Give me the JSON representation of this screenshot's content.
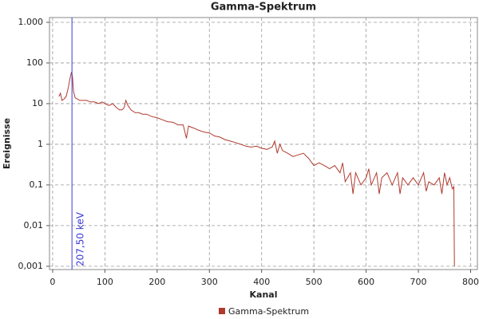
{
  "chart_data": {
    "type": "line",
    "title": "Gamma-Spektrum",
    "x_label": "Kanal",
    "y_label": "Ereignisse",
    "x": [
      12,
      15,
      18,
      22,
      26,
      30,
      33,
      36,
      38,
      40,
      43,
      47,
      52,
      58,
      65,
      72,
      80,
      88,
      95,
      100,
      108,
      115,
      122,
      128,
      133,
      137,
      140,
      144,
      150,
      158,
      165,
      172,
      180,
      190,
      200,
      210,
      220,
      230,
      240,
      250,
      256,
      260,
      270,
      280,
      290,
      300,
      310,
      320,
      330,
      340,
      350,
      360,
      370,
      380,
      390,
      400,
      410,
      420,
      425,
      430,
      435,
      440,
      450,
      460,
      470,
      480,
      490,
      500,
      510,
      520,
      530,
      540,
      550,
      555,
      560,
      570,
      575,
      580,
      590,
      600,
      605,
      610,
      620,
      625,
      630,
      640,
      650,
      660,
      665,
      670,
      680,
      690,
      700,
      710,
      715,
      720,
      730,
      740,
      745,
      750,
      755,
      760,
      765,
      768,
      769
    ],
    "series": [
      {
        "name": "Gamma-Spektrum",
        "color": "#b03a2e",
        "values": [
          15,
          18,
          12,
          13,
          15,
          25,
          40,
          60,
          45,
          20,
          14,
          13,
          12,
          12,
          12,
          11,
          11,
          10,
          11,
          10,
          9,
          10,
          8,
          7,
          7,
          8,
          12,
          9,
          7,
          6,
          6,
          5.5,
          5.5,
          4.8,
          4.5,
          4,
          3.6,
          3.5,
          3,
          3,
          1.4,
          2.8,
          2.5,
          2.2,
          2,
          1.9,
          1.6,
          1.5,
          1.3,
          1.2,
          1.1,
          1,
          0.9,
          0.85,
          0.9,
          0.8,
          0.75,
          0.85,
          1.2,
          0.6,
          1.0,
          0.7,
          0.6,
          0.5,
          0.55,
          0.6,
          0.45,
          0.3,
          0.35,
          0.3,
          0.25,
          0.3,
          0.2,
          0.35,
          0.12,
          0.2,
          0.06,
          0.2,
          0.1,
          0.15,
          0.25,
          0.1,
          0.2,
          0.06,
          0.15,
          0.2,
          0.1,
          0.2,
          0.06,
          0.15,
          0.1,
          0.15,
          0.1,
          0.2,
          0.07,
          0.12,
          0.1,
          0.15,
          0.06,
          0.2,
          0.1,
          0.15,
          0.08,
          0.09,
          0.001
        ]
      }
    ],
    "xlim": [
      -6,
      813
    ],
    "xticks": [
      0,
      100,
      200,
      300,
      400,
      500,
      600,
      700,
      800
    ],
    "ylim": [
      0.00083,
      1310
    ],
    "yticks": [
      {
        "value": 0.001,
        "label": "0,001"
      },
      {
        "value": 0.01,
        "label": "0,01"
      },
      {
        "value": 0.1,
        "label": "0,1"
      },
      1,
      10,
      100,
      {
        "value": 1000,
        "label": "1.000"
      }
    ],
    "log_y": true,
    "grid": true,
    "legend": "bottom",
    "marker": {
      "x": 37,
      "label": "207,50 keV",
      "color": "#3a3ad8"
    }
  }
}
